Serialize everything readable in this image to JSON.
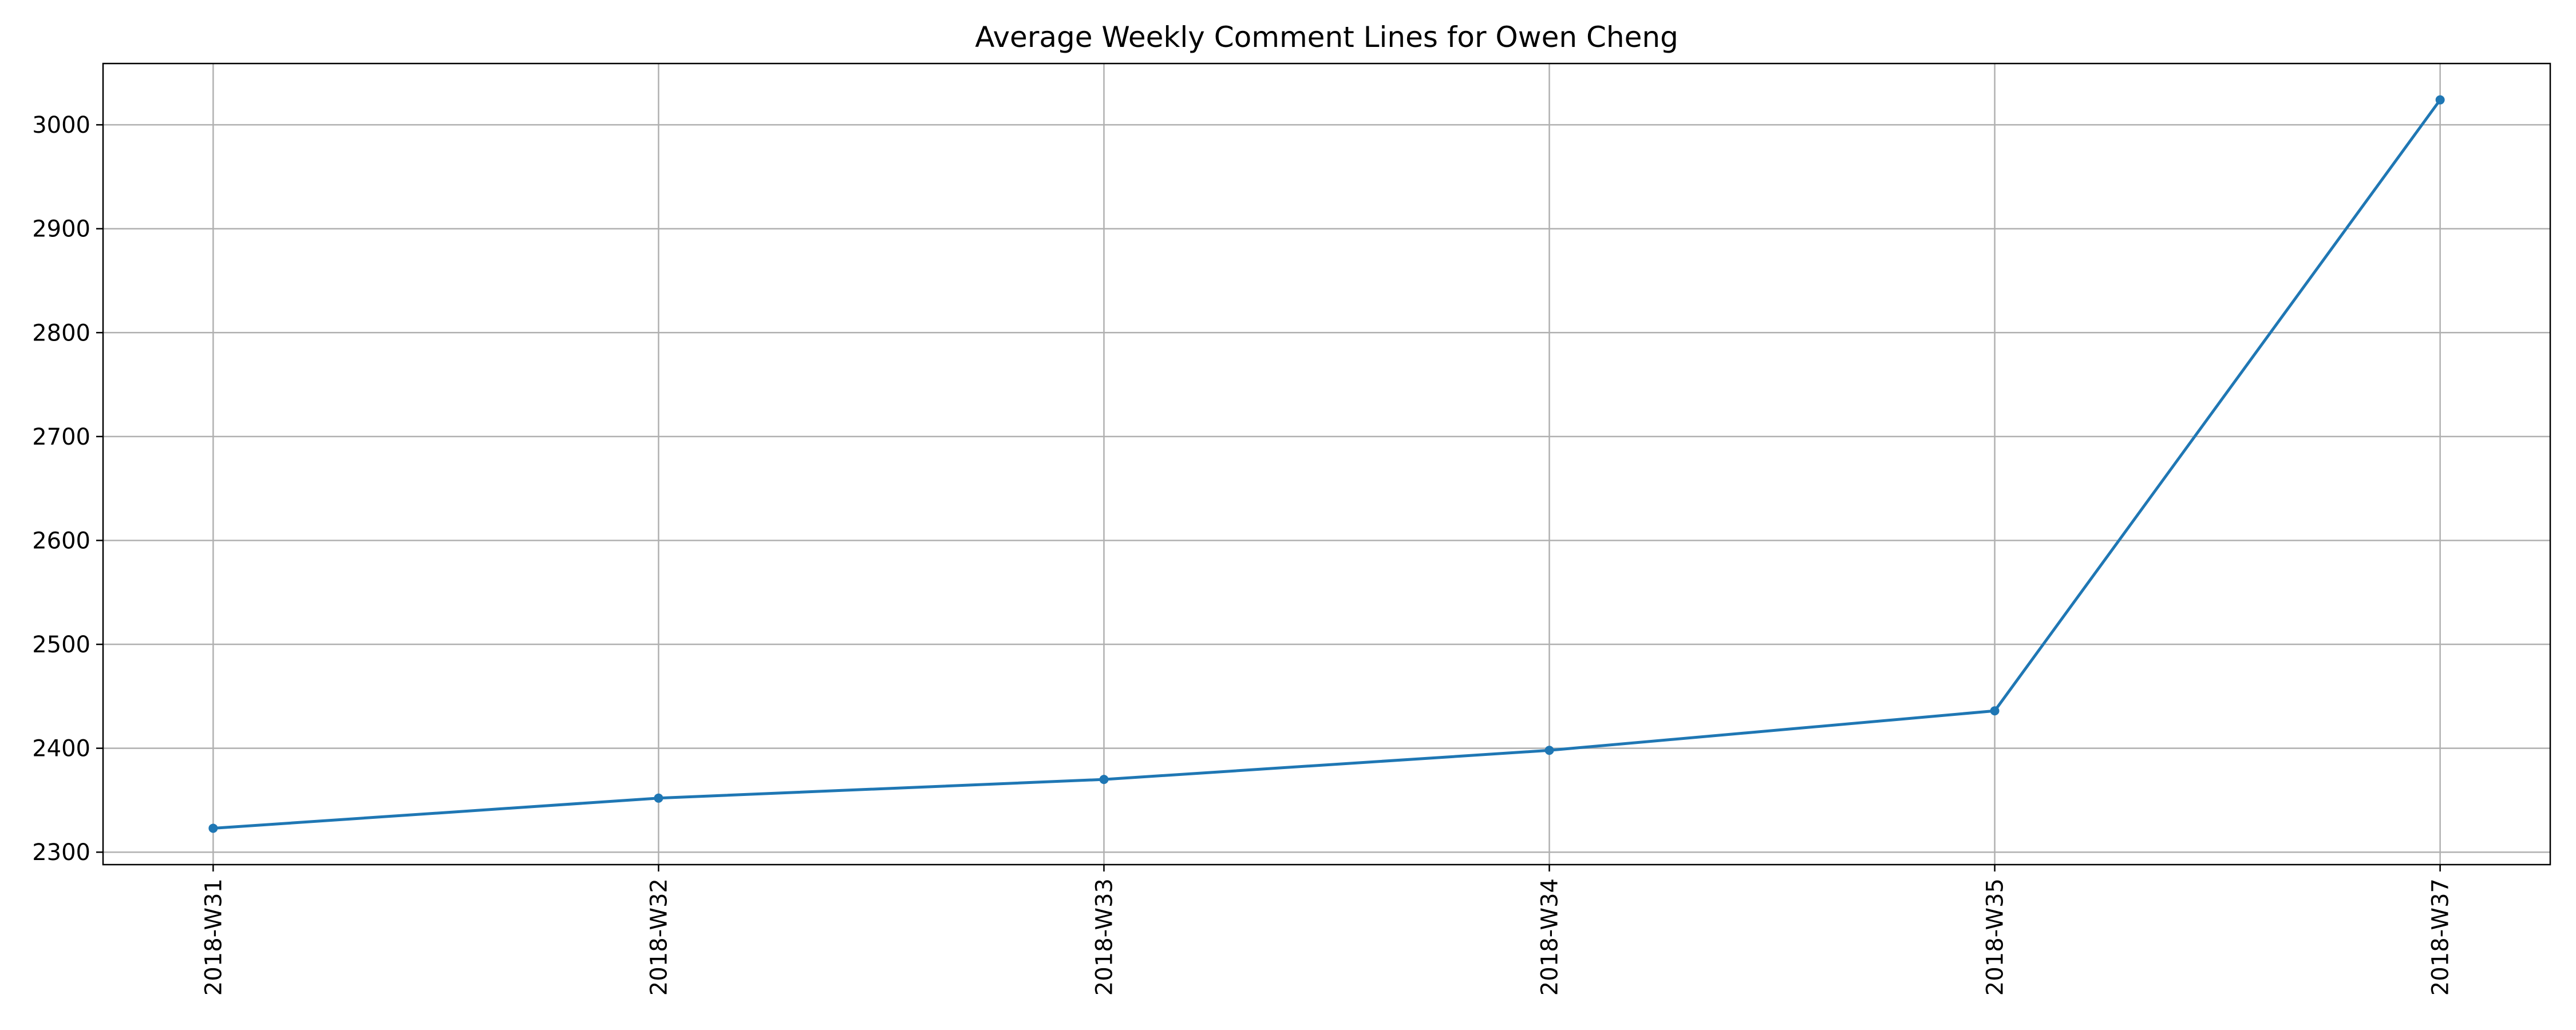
{
  "chart_data": {
    "type": "line",
    "title": "Average Weekly Comment Lines for Owen Cheng",
    "xlabel": "",
    "ylabel": "",
    "categories": [
      "2018-W31",
      "2018-W32",
      "2018-W33",
      "2018-W34",
      "2018-W35",
      "2018-W37"
    ],
    "series": [
      {
        "values": [
          2323,
          2352,
          2370,
          2398,
          2436,
          3024
        ],
        "color": "#1f77b4",
        "marker": "circle"
      }
    ],
    "y_ticks": [
      2300,
      2400,
      2500,
      2600,
      2700,
      2800,
      2900,
      3000
    ],
    "ylim": [
      2288,
      3059
    ],
    "grid": true,
    "legend": "none",
    "x_tick_rotation": "vertical"
  }
}
